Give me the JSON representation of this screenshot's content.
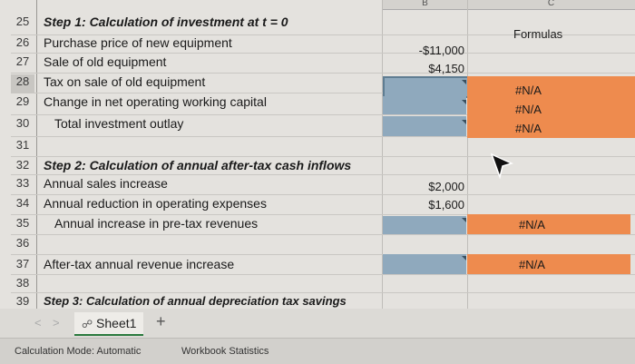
{
  "column_header_b": "B",
  "column_header_c": "C",
  "formulas_header": "Formulas",
  "rows": [
    {
      "num": "25",
      "label": "Step 1: Calculation of investment at t = 0",
      "style": "italic",
      "value": "",
      "formula": ""
    },
    {
      "num": "26",
      "label": "Purchase price of new equipment",
      "style": "normal",
      "value": "-$11,000",
      "formula": ""
    },
    {
      "num": "27",
      "label": "Sale of old equipment",
      "style": "normal",
      "value": "$4,150",
      "formula": ""
    },
    {
      "num": "28",
      "label": "Tax on sale of old equipment",
      "style": "normal",
      "value": "",
      "formula": "#N/A"
    },
    {
      "num": "29",
      "label": "Change in net operating working capital",
      "style": "normal",
      "value": "",
      "formula": "#N/A"
    },
    {
      "num": "30",
      "label": "Total investment outlay",
      "style": "indent",
      "value": "",
      "formula": "#N/A"
    },
    {
      "num": "31",
      "label": "",
      "style": "normal",
      "value": "",
      "formula": ""
    },
    {
      "num": "32",
      "label": "Step 2: Calculation of annual after-tax cash inflows",
      "style": "italic",
      "value": "",
      "formula": ""
    },
    {
      "num": "33",
      "label": "Annual sales increase",
      "style": "normal",
      "value": "$2,000",
      "formula": ""
    },
    {
      "num": "34",
      "label": "Annual reduction in operating expenses",
      "style": "normal",
      "value": "$1,600",
      "formula": ""
    },
    {
      "num": "35",
      "label": "Annual increase in pre-tax revenues",
      "style": "indent",
      "value": "",
      "formula": "#N/A"
    },
    {
      "num": "36",
      "label": "",
      "style": "normal",
      "value": "",
      "formula": ""
    },
    {
      "num": "37",
      "label": "After-tax annual revenue increase",
      "style": "normal",
      "value": "",
      "formula": "#N/A"
    },
    {
      "num": "38",
      "label": "",
      "style": "normal",
      "value": "",
      "formula": ""
    },
    {
      "num": "39",
      "label": "Step 3: Calculation of annual depreciation tax savings",
      "style": "italic",
      "value": "",
      "formula": ""
    }
  ],
  "tabbar": {
    "prev": "<",
    "next": ">",
    "sheet_name": "Sheet1",
    "add": "+"
  },
  "status": {
    "calc_mode": "Calculation Mode: Automatic",
    "workbook_stats": "Workbook Statistics"
  }
}
